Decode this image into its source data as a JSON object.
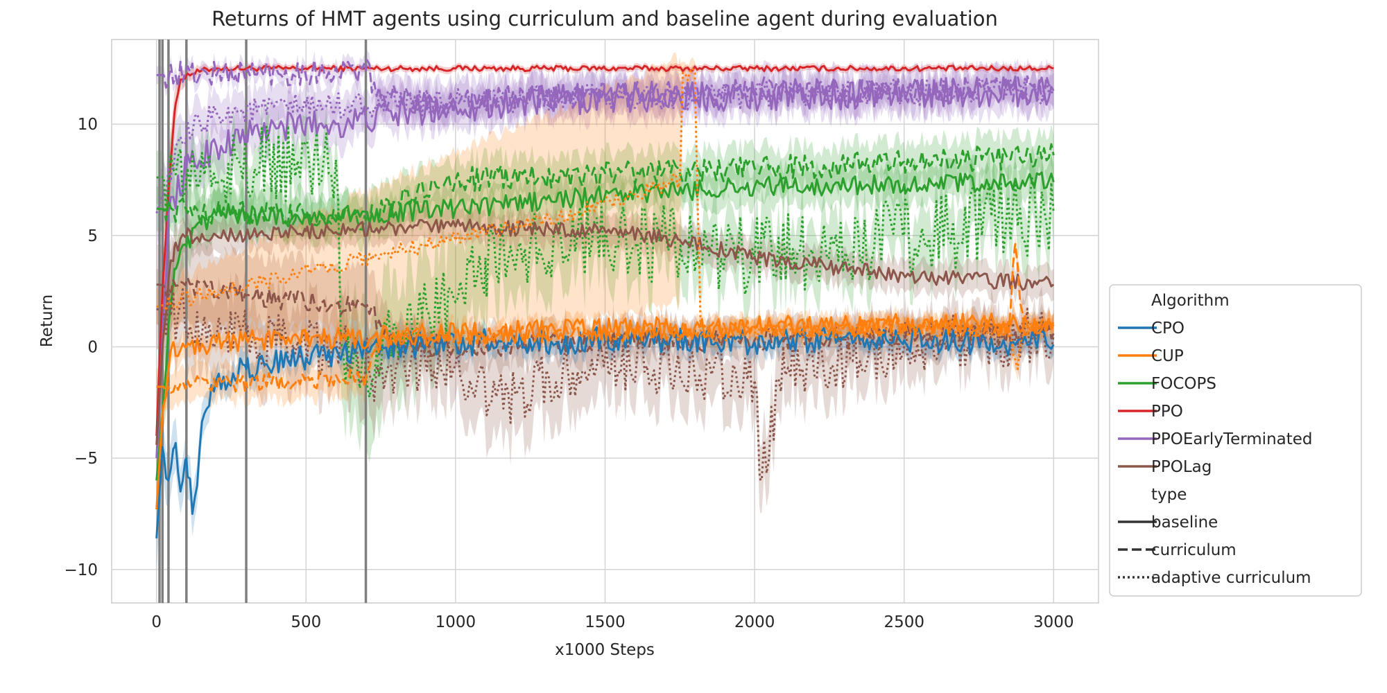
{
  "chart_data": {
    "type": "line",
    "title": "Returns of HMT agents using curriculum and baseline agent during evaluation",
    "xlabel": "x1000 Steps",
    "ylabel": "Return",
    "xlim": [
      -150,
      3150
    ],
    "ylim": [
      -11.5,
      13.8
    ],
    "xticks": [
      0,
      500,
      1000,
      1500,
      2000,
      2500,
      3000
    ],
    "yticks": [
      -10,
      -5,
      0,
      5,
      10
    ],
    "ytick_labels": [
      "−10",
      "−5",
      "0",
      "5",
      "10"
    ],
    "grid": true,
    "vertical_markers": [
      10,
      20,
      40,
      100,
      300,
      700
    ],
    "legend_position": "outside-right",
    "legend": {
      "hue_title": "Algorithm",
      "style_title": "type",
      "algorithms": [
        {
          "name": "CPO",
          "color": "#1f77b4"
        },
        {
          "name": "CUP",
          "color": "#ff7f0e"
        },
        {
          "name": "FOCOPS",
          "color": "#2ca02c"
        },
        {
          "name": "PPO",
          "color": "#d62728"
        },
        {
          "name": "PPOEarlyTerminated",
          "color": "#9467bd"
        },
        {
          "name": "PPOLag",
          "color": "#8c564b"
        }
      ],
      "types": [
        {
          "name": "baseline",
          "dash": "solid"
        },
        {
          "name": "curriculum",
          "dash": "dashed"
        },
        {
          "name": "adaptive curriculum",
          "dash": "dotted"
        }
      ]
    },
    "series": [
      {
        "algorithm": "PPO",
        "type": "baseline",
        "color": "#d62728",
        "dash": "solid",
        "x": [
          0,
          20,
          40,
          60,
          80,
          100,
          150,
          200,
          500,
          1000,
          1500,
          2000,
          2500,
          3000
        ],
        "y": [
          -4.0,
          2.5,
          7.0,
          10.5,
          12.0,
          12.2,
          12.4,
          12.5,
          12.5,
          12.5,
          12.5,
          12.5,
          12.5,
          12.5
        ],
        "band": [
          2.0,
          2.0,
          1.5,
          1.0,
          0.5,
          0.3,
          0.2,
          0.15,
          0.15,
          0.15,
          0.15,
          0.15,
          0.15,
          0.15
        ],
        "noise": 0.12
      },
      {
        "algorithm": "PPOEarlyTerminated",
        "type": "baseline",
        "color": "#9467bd",
        "dash": "solid",
        "x": [
          0,
          40,
          100,
          200,
          300,
          400,
          500,
          600,
          700,
          800,
          1000,
          1500,
          2000,
          2500,
          3000
        ],
        "y": [
          -5.0,
          6.0,
          8.0,
          9.0,
          9.5,
          9.8,
          10.0,
          10.0,
          10.2,
          10.5,
          10.8,
          11.2,
          11.3,
          11.4,
          11.5
        ],
        "band": [
          1.5,
          1.2,
          1.0,
          1.0,
          1.0,
          1.0,
          1.0,
          1.0,
          0.8,
          0.8,
          0.8,
          0.8,
          0.8,
          0.8,
          0.8
        ],
        "noise": 0.7
      },
      {
        "algorithm": "PPOEarlyTerminated",
        "type": "curriculum",
        "color": "#9467bd",
        "dash": "dashed",
        "x": [
          0,
          300,
          700,
          750,
          1000,
          1500,
          2000,
          2500,
          3000
        ],
        "y": [
          12.2,
          12.3,
          12.4,
          11.2,
          11.0,
          11.3,
          11.5,
          11.5,
          11.6
        ],
        "band": [
          0.4,
          0.4,
          0.4,
          0.8,
          0.9,
          0.8,
          0.8,
          0.8,
          0.8
        ],
        "noise": 0.6
      },
      {
        "algorithm": "PPOEarlyTerminated",
        "type": "adaptive curriculum",
        "color": "#9467bd",
        "dash": "dotted",
        "x": [
          0,
          50,
          100,
          200,
          500,
          1000,
          1500,
          2000,
          2500,
          3000
        ],
        "y": [
          6.0,
          8.0,
          9.5,
          10.5,
          10.8,
          11.0,
          11.2,
          11.3,
          11.4,
          11.5
        ],
        "band": [
          1.5,
          1.2,
          1.0,
          0.9,
          0.8,
          0.8,
          0.8,
          0.8,
          0.8,
          0.8
        ],
        "noise": 0.6
      },
      {
        "algorithm": "FOCOPS",
        "type": "baseline",
        "color": "#2ca02c",
        "dash": "solid",
        "x": [
          0,
          20,
          40,
          60,
          100,
          150,
          200,
          500,
          1000,
          1500,
          2000,
          2500,
          3000
        ],
        "y": [
          -6.0,
          -3.0,
          1.0,
          3.5,
          4.5,
          5.5,
          6.0,
          5.8,
          6.2,
          6.8,
          7.2,
          7.3,
          7.4
        ],
        "band": [
          1.5,
          1.5,
          1.5,
          1.2,
          1.0,
          1.0,
          1.0,
          0.8,
          0.8,
          0.8,
          0.8,
          0.8,
          0.8
        ],
        "noise": 0.45
      },
      {
        "algorithm": "FOCOPS",
        "type": "curriculum",
        "color": "#2ca02c",
        "dash": "dashed",
        "x": [
          0,
          300,
          700,
          800,
          1000,
          1500,
          2000,
          2500,
          3000
        ],
        "y": [
          6.2,
          6.0,
          5.7,
          6.5,
          7.5,
          7.8,
          8.0,
          8.3,
          8.6
        ],
        "band": [
          1.0,
          1.0,
          1.0,
          1.0,
          0.9,
          0.9,
          0.9,
          0.9,
          0.9
        ],
        "noise": 0.55
      },
      {
        "algorithm": "FOCOPS",
        "type": "adaptive curriculum",
        "color": "#2ca02c",
        "dash": "dotted",
        "x": [
          0,
          300,
          600,
          620,
          700,
          800,
          1000,
          1100,
          1500,
          2000,
          2500,
          3000
        ],
        "y": [
          7.6,
          8.0,
          8.4,
          0.0,
          -1.0,
          1.0,
          2.0,
          4.0,
          5.0,
          4.0,
          5.0,
          6.0
        ],
        "band": [
          1.2,
          1.2,
          1.2,
          2.5,
          3.0,
          2.5,
          2.5,
          2.0,
          1.5,
          1.5,
          1.5,
          1.5
        ],
        "noise": 1.8
      },
      {
        "algorithm": "PPOLag",
        "type": "baseline",
        "color": "#8c564b",
        "dash": "solid",
        "x": [
          0,
          20,
          40,
          60,
          100,
          200,
          500,
          1000,
          1500,
          1750,
          2000,
          2500,
          3000
        ],
        "y": [
          -4.4,
          0.0,
          3.0,
          4.5,
          5.0,
          5.0,
          5.2,
          5.4,
          5.2,
          4.8,
          4.0,
          3.2,
          2.8
        ],
        "band": [
          1.2,
          1.2,
          1.2,
          1.0,
          0.7,
          0.7,
          0.7,
          0.7,
          0.7,
          0.7,
          0.7,
          0.7,
          0.7
        ],
        "noise": 0.35
      },
      {
        "algorithm": "PPOLag",
        "type": "curriculum",
        "color": "#8c564b",
        "dash": "dashed",
        "x": [
          0,
          300,
          700,
          800,
          1000,
          1500,
          2000,
          2500,
          3000
        ],
        "y": [
          2.8,
          2.3,
          1.8,
          0.2,
          0.0,
          0.2,
          0.3,
          0.5,
          0.6
        ],
        "band": [
          1.8,
          1.8,
          1.8,
          1.0,
          0.9,
          0.9,
          0.9,
          0.9,
          0.9
        ],
        "noise": 0.5
      },
      {
        "algorithm": "PPOLag",
        "type": "adaptive curriculum",
        "color": "#8c564b",
        "dash": "dotted",
        "x": [
          0,
          300,
          700,
          720,
          800,
          1000,
          1120,
          1500,
          2000,
          2020,
          2100,
          2500,
          3000
        ],
        "y": [
          1.7,
          0.5,
          -0.5,
          -1.5,
          -1.0,
          -0.8,
          -2.5,
          -0.5,
          -1.5,
          -6.0,
          -1.0,
          0.0,
          0.5
        ],
        "band": [
          1.8,
          1.8,
          1.8,
          1.8,
          1.5,
          1.5,
          2.0,
          1.5,
          1.5,
          1.5,
          1.5,
          1.2,
          1.2
        ],
        "noise": 1.3
      },
      {
        "algorithm": "CPO",
        "type": "baseline",
        "color": "#1f77b4",
        "dash": "solid",
        "x": [
          0,
          20,
          40,
          60,
          80,
          100,
          120,
          160,
          200,
          300,
          500,
          700,
          1000,
          1500,
          2000,
          2500,
          3000
        ],
        "y": [
          -8.6,
          -4.5,
          -6.0,
          -4.5,
          -6.5,
          -5.0,
          -7.5,
          -3.0,
          -1.5,
          -1.0,
          -0.5,
          0.0,
          0.2,
          0.3,
          0.2,
          0.3,
          0.1
        ],
        "band": [
          1.5,
          1.2,
          1.2,
          1.2,
          1.0,
          1.0,
          1.0,
          0.8,
          0.6,
          0.6,
          0.5,
          0.5,
          0.5,
          0.5,
          0.5,
          0.5,
          0.5
        ],
        "noise": 0.6
      },
      {
        "algorithm": "CUP",
        "type": "baseline",
        "color": "#ff7f0e",
        "dash": "solid",
        "x": [
          0,
          20,
          40,
          60,
          100,
          200,
          500,
          1000,
          1500,
          2000,
          2500,
          3000
        ],
        "y": [
          -7.3,
          -3.0,
          -1.0,
          0.0,
          0.0,
          0.2,
          0.3,
          0.6,
          0.8,
          0.9,
          1.0,
          1.0
        ],
        "band": [
          1.2,
          1.0,
          0.8,
          0.6,
          0.6,
          0.5,
          0.5,
          0.4,
          0.4,
          0.4,
          0.4,
          0.4
        ],
        "noise": 0.5
      },
      {
        "algorithm": "CUP",
        "type": "curriculum",
        "color": "#ff7f0e",
        "dash": "dashed",
        "x": [
          0,
          300,
          700,
          760,
          1000,
          1500,
          2000,
          2500,
          2850,
          2870,
          2900,
          3000
        ],
        "y": [
          -1.8,
          -1.6,
          -1.4,
          0.5,
          0.5,
          0.6,
          0.8,
          0.9,
          0.8,
          4.5,
          0.8,
          1.1
        ],
        "band": [
          0.8,
          0.8,
          0.8,
          0.5,
          0.5,
          0.4,
          0.4,
          0.4,
          0.4,
          0.4,
          0.4,
          0.4
        ],
        "noise": 0.4
      },
      {
        "algorithm": "CUP",
        "type": "adaptive curriculum",
        "color": "#ff7f0e",
        "dash": "dotted",
        "x": [
          0,
          700,
          1400,
          1750,
          1760,
          1800,
          1820,
          1840,
          2000,
          2500,
          2850,
          2880,
          2900,
          3000
        ],
        "y": [
          1.8,
          4.0,
          6.0,
          7.5,
          12.3,
          12.3,
          0.5,
          0.5,
          0.7,
          0.8,
          0.7,
          -1.0,
          0.8,
          1.0
        ],
        "band": [
          0.8,
          3.0,
          5.0,
          5.5,
          0.5,
          0.5,
          0.5,
          0.5,
          0.5,
          0.5,
          0.5,
          0.5,
          0.5,
          0.5
        ],
        "noise": 0.35
      }
    ]
  }
}
